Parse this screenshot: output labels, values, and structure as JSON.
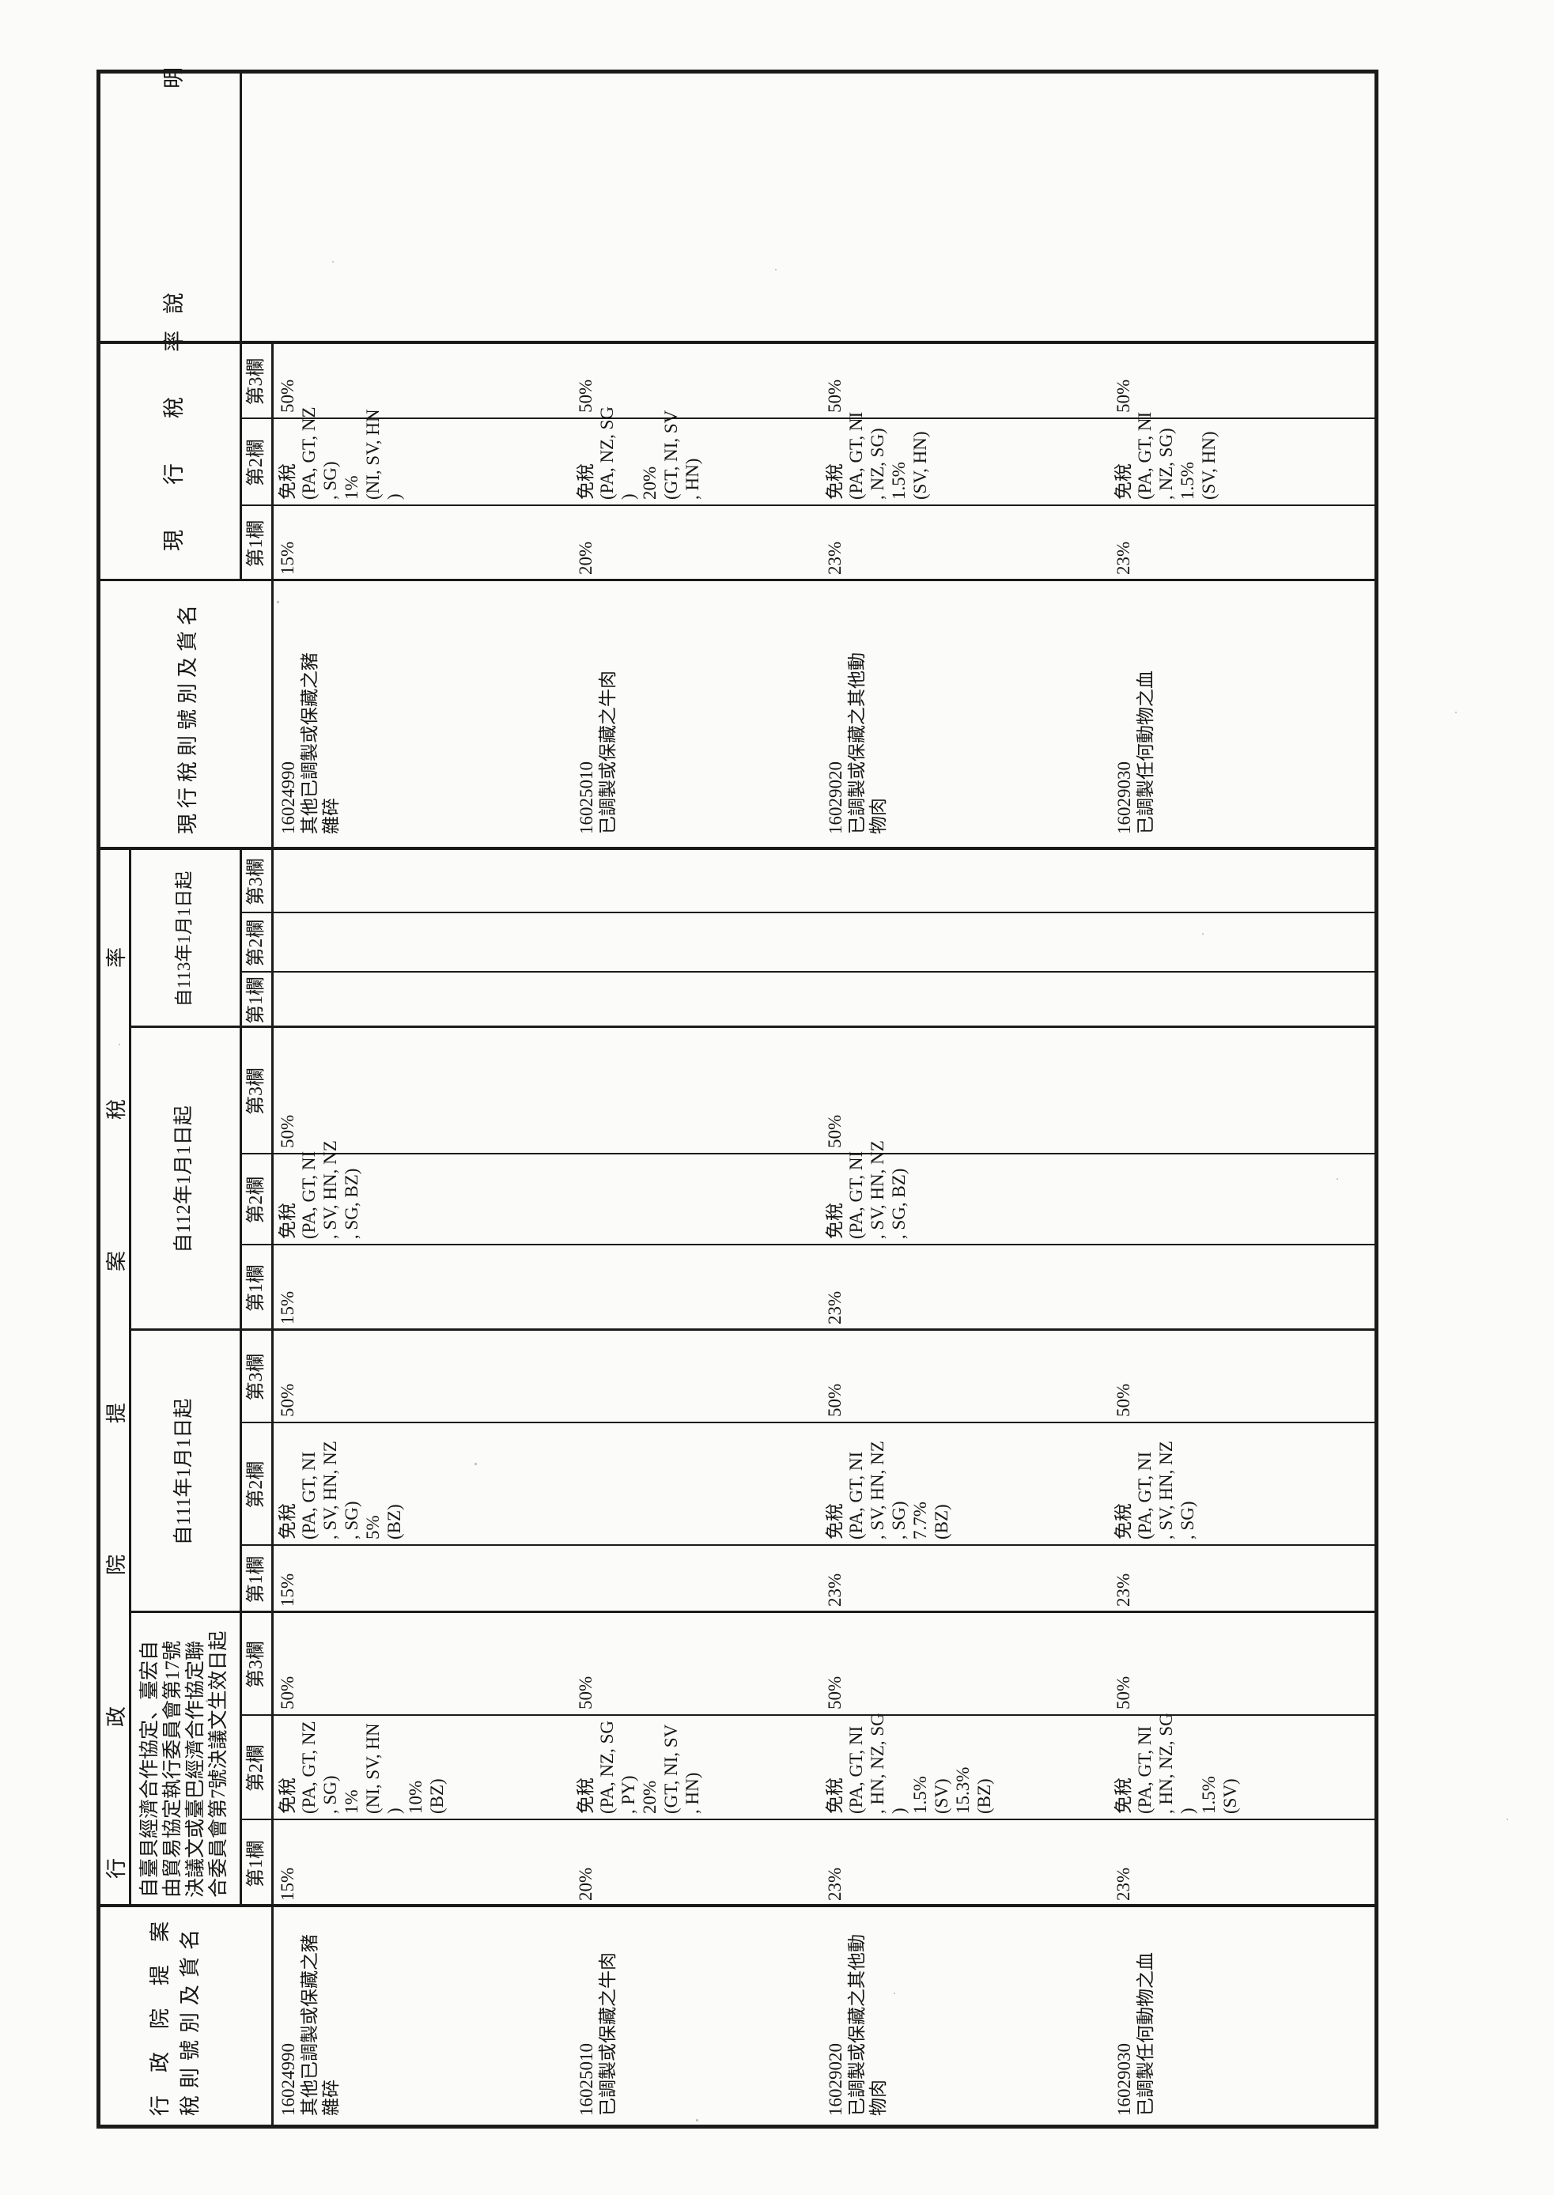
{
  "table": {
    "proposal_rate_group_title": "行政院提案稅率",
    "proposal_name_header": {
      "line1": "行政院提案",
      "line2": "稅則號別及貨名"
    },
    "condition_header_lines": [
      "自臺貝經濟合作協定、臺宏自",
      "由貿易協定執行委員會第17號",
      "決議文或臺巴經濟合作協定聯",
      "合委員會第7號決議文生效日起"
    ],
    "date_headers": {
      "y111": "自111年1月1日起",
      "y112": "自112年1月1日起",
      "y113": "自113年1月1日起"
    },
    "current_name_header": "現行稅則號別及貨名",
    "current_rate_header": "現行稅率",
    "note_header": "說明",
    "col_labels": [
      "第1欄",
      "第2欄",
      "第3欄"
    ],
    "rows": [
      {
        "code": "16024990",
        "name_lines": [
          "其他已調製或保藏之豬",
          "雜碎"
        ],
        "proposal": {
          "col1": "15%",
          "col2_lines": [
            "免稅",
            "(PA, GT, NZ",
            ", SG)",
            "1%",
            "(NI, SV, HN",
            ")",
            "10%",
            "(BZ)"
          ],
          "col3": "50%"
        },
        "y111": {
          "col1": "15%",
          "col2_lines": [
            "免稅",
            "(PA, GT, NI",
            ", SV, HN, NZ",
            ", SG)",
            "5%",
            "(BZ)"
          ],
          "col3": "50%"
        },
        "y112": {
          "col1": "15%",
          "col2_lines": [
            "免稅",
            "(PA, GT, NI",
            ", SV, HN, NZ",
            ", SG, BZ)"
          ],
          "col3": "50%"
        },
        "y113": {
          "col1": "",
          "col2_lines": [],
          "col3": ""
        },
        "current": {
          "col1": "15%",
          "col2_lines": [
            "免稅",
            "(PA, GT, NZ",
            ", SG)",
            "1%",
            "(NI, SV, HN",
            ")"
          ],
          "col3": "50%"
        },
        "note": ""
      },
      {
        "code": "16025010",
        "name_lines": [
          "已調製或保藏之牛肉"
        ],
        "proposal": {
          "col1": "20%",
          "col2_lines": [
            "免稅",
            "(PA, NZ, SG",
            ", PY)",
            "20%",
            "(GT, NI, SV",
            ", HN)"
          ],
          "col3": "50%"
        },
        "y111": {
          "col1": "",
          "col2_lines": [],
          "col3": ""
        },
        "y112": {
          "col1": "",
          "col2_lines": [],
          "col3": ""
        },
        "y113": {
          "col1": "",
          "col2_lines": [],
          "col3": ""
        },
        "current": {
          "col1": "20%",
          "col2_lines": [
            "免稅",
            "(PA, NZ, SG",
            ")",
            "20%",
            "(GT, NI, SV",
            ", HN)"
          ],
          "col3": "50%"
        },
        "note": ""
      },
      {
        "code": "16029020",
        "name_lines": [
          "已調製或保藏之其他動",
          "物肉"
        ],
        "proposal": {
          "col1": "23%",
          "col2_lines": [
            "免稅",
            "(PA, GT, NI",
            ", HN, NZ, SG",
            ")",
            "1.5%",
            "(SV)",
            "15.3%",
            "(BZ)"
          ],
          "col3": "50%"
        },
        "y111": {
          "col1": "23%",
          "col2_lines": [
            "免稅",
            "(PA, GT, NI",
            ", SV, HN, NZ",
            ", SG)",
            "7.7%",
            "(BZ)"
          ],
          "col3": "50%"
        },
        "y112": {
          "col1": "23%",
          "col2_lines": [
            "免稅",
            "(PA, GT, NI",
            ", SV, HN, NZ",
            ", SG, BZ)"
          ],
          "col3": "50%"
        },
        "y113": {
          "col1": "",
          "col2_lines": [],
          "col3": ""
        },
        "current": {
          "col1": "23%",
          "col2_lines": [
            "免稅",
            "(PA, GT, NI",
            ", NZ, SG)",
            "1.5%",
            "(SV, HN)"
          ],
          "col3": "50%"
        },
        "note": ""
      },
      {
        "code": "16029030",
        "name_lines": [
          "已調製任何動物之血"
        ],
        "proposal": {
          "col1": "23%",
          "col2_lines": [
            "免稅",
            "(PA, GT, NI",
            ", HN, NZ, SG",
            ")",
            "1.5%",
            "(SV)"
          ],
          "col3": "50%"
        },
        "y111": {
          "col1": "23%",
          "col2_lines": [
            "免稅",
            "(PA, GT, NI",
            ", SV, HN, NZ",
            ", SG)"
          ],
          "col3": "50%"
        },
        "y112": {
          "col1": "",
          "col2_lines": [],
          "col3": ""
        },
        "y113": {
          "col1": "",
          "col2_lines": [],
          "col3": ""
        },
        "current": {
          "col1": "23%",
          "col2_lines": [
            "免稅",
            "(PA, GT, NI",
            ", NZ, SG)",
            "1.5%",
            "(SV, HN)"
          ],
          "col3": "50%"
        },
        "note": ""
      }
    ]
  }
}
